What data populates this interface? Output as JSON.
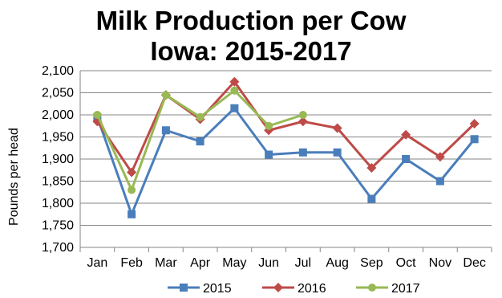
{
  "chart_data": {
    "type": "line",
    "title": "Milk Production per Cow",
    "subtitle": "Iowa:  2015-2017",
    "xlabel": "",
    "ylabel": "Pounds per head",
    "categories": [
      "Jan",
      "Feb",
      "Mar",
      "Apr",
      "May",
      "Jun",
      "Jul",
      "Aug",
      "Sep",
      "Oct",
      "Nov",
      "Dec"
    ],
    "ylim": [
      1700,
      2100
    ],
    "yticks": [
      1700,
      1750,
      1800,
      1850,
      1900,
      1950,
      2000,
      2050,
      2100
    ],
    "ytick_labels": [
      "1,700",
      "1,750",
      "1,800",
      "1,850",
      "1,900",
      "1,950",
      "2,000",
      "2,050",
      "2,100"
    ],
    "grid": "horizontal",
    "legend": "bottom",
    "series": [
      {
        "name": "2015",
        "color": "#4a7ebb",
        "marker": "square",
        "values": [
          1995,
          1775,
          1965,
          1940,
          2015,
          1910,
          1915,
          1915,
          1810,
          1900,
          1850,
          1945
        ]
      },
      {
        "name": "2016",
        "color": "#be4b48",
        "marker": "diamond",
        "values": [
          1985,
          1870,
          2045,
          1990,
          2075,
          1965,
          1985,
          1970,
          1880,
          1955,
          1905,
          1980
        ]
      },
      {
        "name": "2017",
        "color": "#98b954",
        "marker": "circle",
        "values": [
          2000,
          1830,
          2045,
          1995,
          2055,
          1975,
          2000,
          null,
          null,
          null,
          null,
          null
        ]
      }
    ]
  }
}
